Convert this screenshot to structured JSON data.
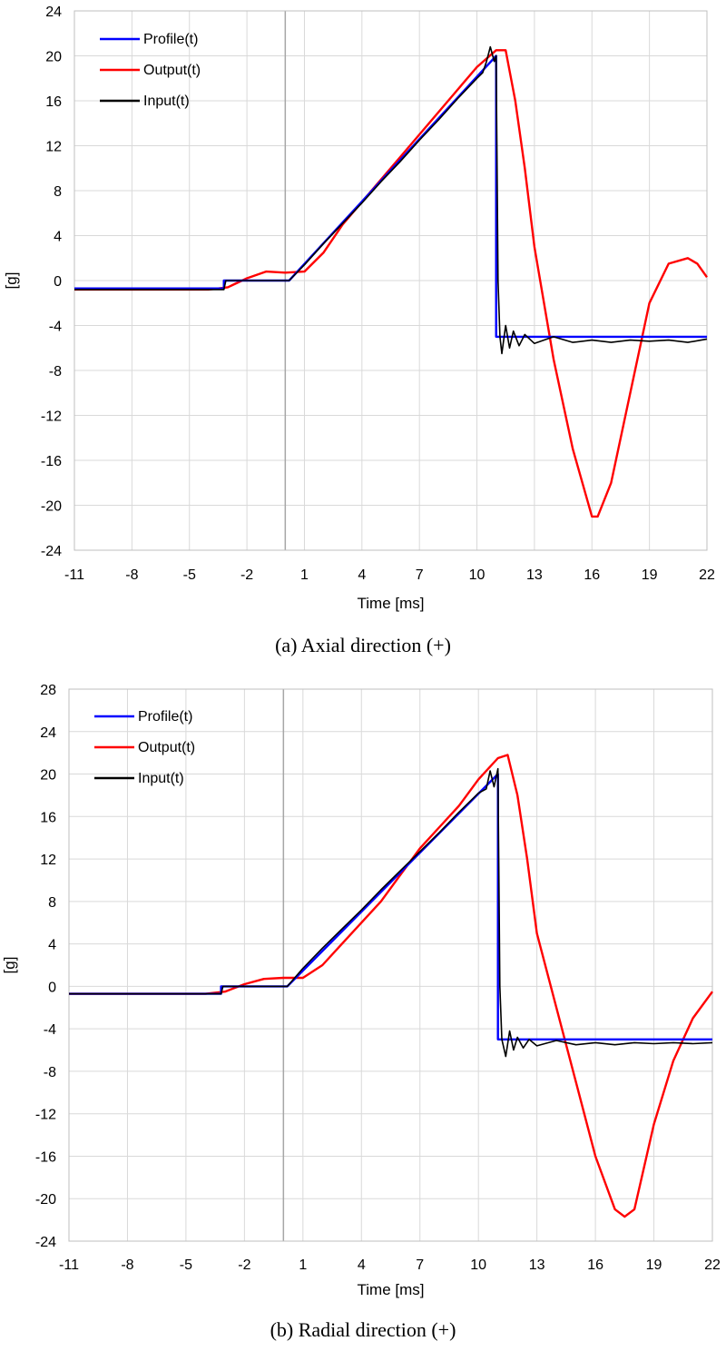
{
  "chart_data": [
    {
      "type": "line",
      "caption": "(a) Axial direction (+)",
      "xlabel": "Time [ms]",
      "ylabel": "[g]",
      "xlim": [
        -11,
        22
      ],
      "ylim": [
        -24,
        24
      ],
      "xticks": [
        "-11",
        "-8",
        "-5",
        "-2",
        "1",
        "4",
        "7",
        "10",
        "13",
        "16",
        "19",
        "22"
      ],
      "yticks": [
        "-24",
        "-20",
        "-16",
        "-12",
        "-8",
        "-4",
        "0",
        "4",
        "8",
        "12",
        "16",
        "20",
        "24"
      ],
      "legend_position": "top-left",
      "series": [
        {
          "name": "Profile(t)",
          "color": "#0000ff",
          "points": [
            [
              -11,
              -0.7
            ],
            [
              -3.2,
              -0.7
            ],
            [
              -3.2,
              0
            ],
            [
              0.2,
              0
            ],
            [
              11,
              20
            ],
            [
              11,
              -5
            ],
            [
              22,
              -5
            ]
          ]
        },
        {
          "name": "Output(t)",
          "color": "#ff0000",
          "points": [
            [
              -11,
              -0.8
            ],
            [
              -4,
              -0.8
            ],
            [
              -3,
              -0.6
            ],
            [
              -2,
              0.2
            ],
            [
              -1,
              0.8
            ],
            [
              0,
              0.7
            ],
            [
              1,
              0.8
            ],
            [
              2,
              2.5
            ],
            [
              3,
              5
            ],
            [
              4,
              7
            ],
            [
              5,
              9
            ],
            [
              6,
              11
            ],
            [
              7,
              13
            ],
            [
              8,
              15
            ],
            [
              9,
              17
            ],
            [
              10,
              19
            ],
            [
              11,
              20.5
            ],
            [
              11.5,
              20.5
            ],
            [
              12,
              16
            ],
            [
              12.5,
              10
            ],
            [
              13,
              3
            ],
            [
              14,
              -7
            ],
            [
              15,
              -15
            ],
            [
              16,
              -21
            ],
            [
              16.3,
              -21
            ],
            [
              17,
              -18
            ],
            [
              18,
              -10
            ],
            [
              19,
              -2
            ],
            [
              20,
              1.5
            ],
            [
              21,
              2
            ],
            [
              21.5,
              1.5
            ],
            [
              22,
              0.3
            ]
          ]
        },
        {
          "name": "Input(t)",
          "color": "#000000",
          "points": [
            [
              -11,
              -0.8
            ],
            [
              -3.2,
              -0.8
            ],
            [
              -3.1,
              0
            ],
            [
              0.2,
              0
            ],
            [
              1,
              1.4
            ],
            [
              2,
              3.3
            ],
            [
              3,
              5.1
            ],
            [
              4,
              6.9
            ],
            [
              5,
              8.8
            ],
            [
              6,
              10.6
            ],
            [
              7,
              12.5
            ],
            [
              8,
              14.3
            ],
            [
              9,
              16.2
            ],
            [
              10,
              18
            ],
            [
              10.3,
              18.5
            ],
            [
              10.5,
              19.5
            ],
            [
              10.7,
              20.8
            ],
            [
              10.9,
              19.5
            ],
            [
              11,
              20
            ],
            [
              11.1,
              0
            ],
            [
              11.2,
              -5
            ],
            [
              11.3,
              -6.5
            ],
            [
              11.5,
              -4
            ],
            [
              11.7,
              -6
            ],
            [
              11.9,
              -4.5
            ],
            [
              12.2,
              -5.8
            ],
            [
              12.5,
              -4.8
            ],
            [
              13,
              -5.6
            ],
            [
              14,
              -5
            ],
            [
              15,
              -5.5
            ],
            [
              16,
              -5.3
            ],
            [
              17,
              -5.5
            ],
            [
              18,
              -5.3
            ],
            [
              19,
              -5.4
            ],
            [
              20,
              -5.3
            ],
            [
              21,
              -5.5
            ],
            [
              22,
              -5.2
            ]
          ]
        }
      ]
    },
    {
      "type": "line",
      "caption": "(b) Radial direction (+)",
      "xlabel": "Time [ms]",
      "ylabel": "[g]",
      "xlim": [
        -11,
        22
      ],
      "ylim": [
        -24,
        28
      ],
      "xticks": [
        "-11",
        "-8",
        "-5",
        "-2",
        "1",
        "4",
        "7",
        "10",
        "13",
        "16",
        "19",
        "22"
      ],
      "yticks": [
        "-24",
        "-20",
        "-16",
        "-12",
        "-8",
        "-4",
        "0",
        "4",
        "8",
        "12",
        "16",
        "20",
        "24",
        "28"
      ],
      "legend_position": "top-left",
      "series": [
        {
          "name": "Profile(t)",
          "color": "#0000ff",
          "points": [
            [
              -11,
              -0.7
            ],
            [
              -3.2,
              -0.7
            ],
            [
              -3.2,
              0
            ],
            [
              0.2,
              0
            ],
            [
              11,
              20
            ],
            [
              11,
              -5
            ],
            [
              22,
              -5
            ]
          ]
        },
        {
          "name": "Output(t)",
          "color": "#ff0000",
          "points": [
            [
              -11,
              -0.7
            ],
            [
              -4,
              -0.7
            ],
            [
              -3,
              -0.5
            ],
            [
              -2,
              0.2
            ],
            [
              -1,
              0.7
            ],
            [
              0,
              0.8
            ],
            [
              1,
              0.8
            ],
            [
              2,
              2
            ],
            [
              3,
              4
            ],
            [
              4,
              6
            ],
            [
              5,
              8
            ],
            [
              6,
              10.5
            ],
            [
              7,
              13
            ],
            [
              8,
              15
            ],
            [
              9,
              17
            ],
            [
              10,
              19.5
            ],
            [
              11,
              21.5
            ],
            [
              11.5,
              21.8
            ],
            [
              12,
              18
            ],
            [
              12.5,
              12
            ],
            [
              13,
              5
            ],
            [
              14,
              -2
            ],
            [
              15,
              -9
            ],
            [
              16,
              -16
            ],
            [
              17,
              -21
            ],
            [
              17.5,
              -21.7
            ],
            [
              18,
              -21
            ],
            [
              19,
              -13
            ],
            [
              20,
              -7
            ],
            [
              21,
              -3
            ],
            [
              22,
              -0.5
            ]
          ]
        },
        {
          "name": "Input(t)",
          "color": "#000000",
          "points": [
            [
              -11,
              -0.7
            ],
            [
              -3.2,
              -0.7
            ],
            [
              -3.1,
              0
            ],
            [
              0.2,
              0
            ],
            [
              1,
              1.7
            ],
            [
              2,
              3.6
            ],
            [
              3,
              5.4
            ],
            [
              4,
              7.2
            ],
            [
              5,
              9.1
            ],
            [
              6,
              10.9
            ],
            [
              7,
              12.7
            ],
            [
              8,
              14.5
            ],
            [
              9,
              16.4
            ],
            [
              10,
              18.2
            ],
            [
              10.4,
              18.6
            ],
            [
              10.6,
              20.3
            ],
            [
              10.8,
              18.8
            ],
            [
              11,
              20.5
            ],
            [
              11.1,
              0
            ],
            [
              11.2,
              -5
            ],
            [
              11.4,
              -6.6
            ],
            [
              11.6,
              -4.2
            ],
            [
              11.8,
              -6
            ],
            [
              12,
              -4.8
            ],
            [
              12.3,
              -5.8
            ],
            [
              12.6,
              -5
            ],
            [
              13,
              -5.6
            ],
            [
              14,
              -5.1
            ],
            [
              15,
              -5.5
            ],
            [
              16,
              -5.3
            ],
            [
              17,
              -5.5
            ],
            [
              18,
              -5.3
            ],
            [
              19,
              -5.4
            ],
            [
              20,
              -5.3
            ],
            [
              21,
              -5.4
            ],
            [
              22,
              -5.3
            ]
          ]
        }
      ]
    }
  ]
}
